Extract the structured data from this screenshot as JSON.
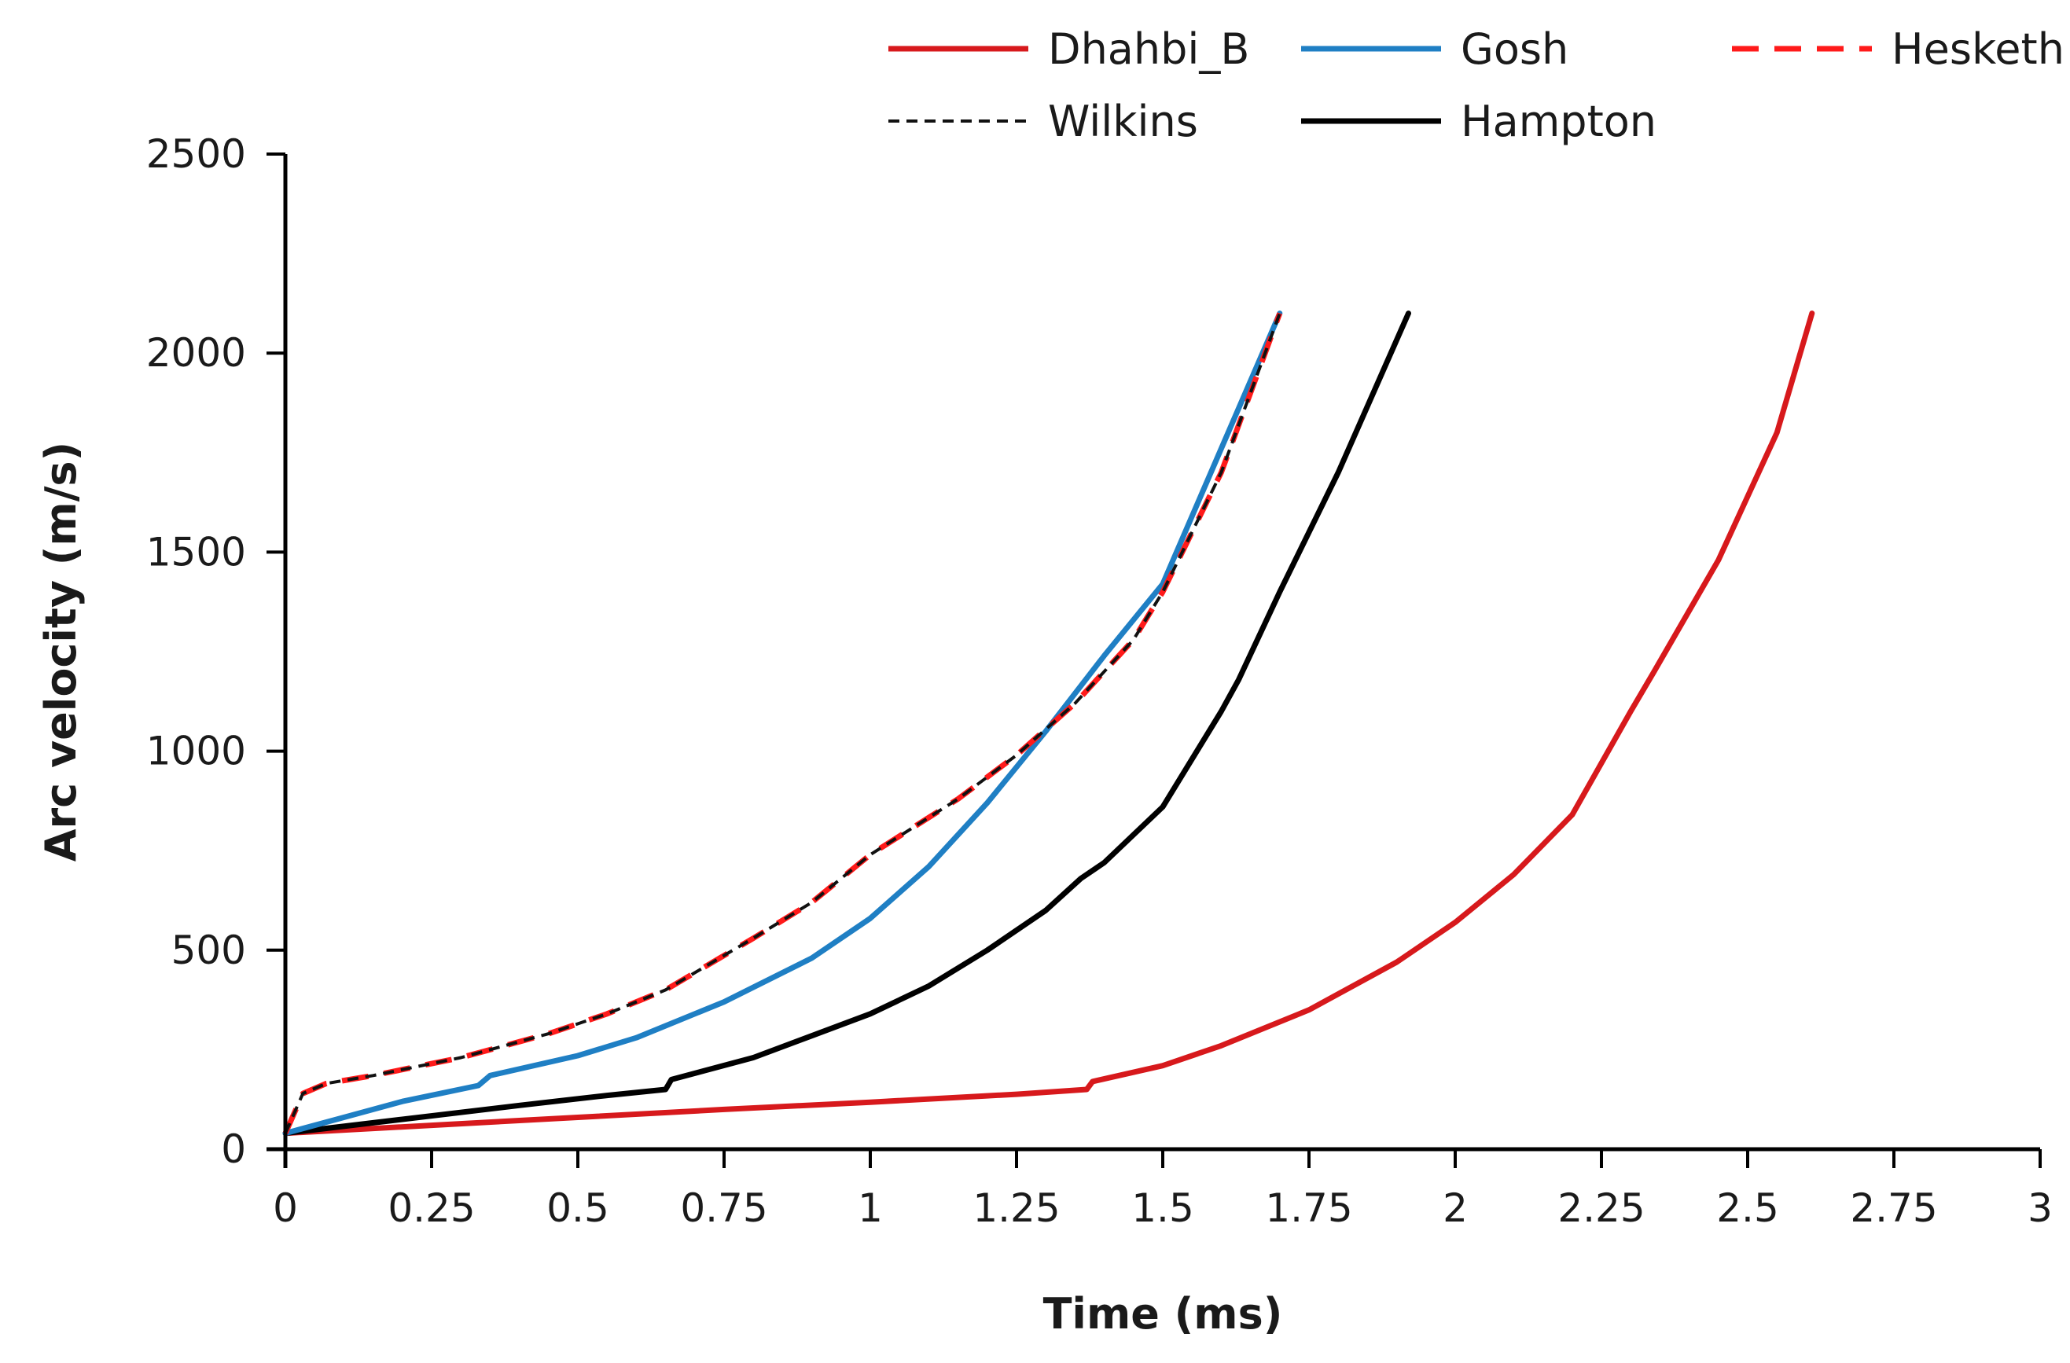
{
  "chart_data": {
    "type": "line",
    "title": "",
    "xlabel": "Time (ms)",
    "ylabel": "Arc velocity (m/s)",
    "xlim": [
      0,
      3
    ],
    "ylim": [
      0,
      2500
    ],
    "grid": false,
    "legend_position": "top-right",
    "x_ticks": [
      {
        "value": 0,
        "label": "0"
      },
      {
        "value": 0.25,
        "label": "0.25"
      },
      {
        "value": 0.5,
        "label": "0.5"
      },
      {
        "value": 0.75,
        "label": "0.75"
      },
      {
        "value": 1,
        "label": "1"
      },
      {
        "value": 1.25,
        "label": "1.25"
      },
      {
        "value": 1.5,
        "label": "1.5"
      },
      {
        "value": 1.75,
        "label": "1.75"
      },
      {
        "value": 2,
        "label": "2"
      },
      {
        "value": 2.25,
        "label": "2.25"
      },
      {
        "value": 2.5,
        "label": "2.5"
      },
      {
        "value": 2.75,
        "label": "2.75"
      },
      {
        "value": 3,
        "label": "3"
      }
    ],
    "y_ticks": [
      {
        "value": 0,
        "label": "0"
      },
      {
        "value": 500,
        "label": "500"
      },
      {
        "value": 1000,
        "label": "1000"
      },
      {
        "value": 1500,
        "label": "1500"
      },
      {
        "value": 2000,
        "label": "2000"
      },
      {
        "value": 2500,
        "label": "2500"
      }
    ],
    "series": [
      {
        "name": "Dhahbi_B",
        "color": "#d7191c",
        "dash": "solid",
        "points": [
          [
            0,
            40
          ],
          [
            0.25,
            60
          ],
          [
            0.5,
            80
          ],
          [
            0.75,
            100
          ],
          [
            1,
            118
          ],
          [
            1.25,
            138
          ],
          [
            1.37,
            150
          ],
          [
            1.38,
            170
          ],
          [
            1.5,
            210
          ],
          [
            1.6,
            260
          ],
          [
            1.75,
            350
          ],
          [
            1.9,
            470
          ],
          [
            2.0,
            570
          ],
          [
            2.1,
            690
          ],
          [
            2.2,
            840
          ],
          [
            2.3,
            1100
          ],
          [
            2.34,
            1200
          ],
          [
            2.45,
            1480
          ],
          [
            2.55,
            1800
          ],
          [
            2.61,
            2100
          ]
        ]
      },
      {
        "name": "Gosh",
        "color": "#1f7fc4",
        "dash": "solid",
        "points": [
          [
            0,
            40
          ],
          [
            0.1,
            80
          ],
          [
            0.2,
            120
          ],
          [
            0.33,
            160
          ],
          [
            0.35,
            185
          ],
          [
            0.5,
            235
          ],
          [
            0.6,
            280
          ],
          [
            0.75,
            370
          ],
          [
            0.9,
            480
          ],
          [
            1.0,
            580
          ],
          [
            1.1,
            710
          ],
          [
            1.2,
            870
          ],
          [
            1.3,
            1050
          ],
          [
            1.4,
            1240
          ],
          [
            1.5,
            1420
          ],
          [
            1.6,
            1760
          ],
          [
            1.7,
            2100
          ]
        ]
      },
      {
        "name": "Hesketh",
        "color": "#ff1a1a",
        "dash": "long-dash",
        "points": [
          [
            0,
            40
          ],
          [
            0.03,
            140
          ],
          [
            0.07,
            165
          ],
          [
            0.15,
            185
          ],
          [
            0.3,
            230
          ],
          [
            0.45,
            290
          ],
          [
            0.55,
            340
          ],
          [
            0.65,
            400
          ],
          [
            0.8,
            530
          ],
          [
            0.9,
            620
          ],
          [
            1.0,
            740
          ],
          [
            1.15,
            880
          ],
          [
            1.25,
            990
          ],
          [
            1.35,
            1120
          ],
          [
            1.45,
            1280
          ],
          [
            1.5,
            1400
          ],
          [
            1.6,
            1700
          ],
          [
            1.7,
            2100
          ]
        ]
      },
      {
        "name": "Wilkins",
        "color": "#111111",
        "dash": "short-dash",
        "points": [
          [
            0,
            40
          ],
          [
            0.03,
            140
          ],
          [
            0.07,
            165
          ],
          [
            0.15,
            185
          ],
          [
            0.3,
            230
          ],
          [
            0.45,
            290
          ],
          [
            0.55,
            340
          ],
          [
            0.65,
            400
          ],
          [
            0.8,
            530
          ],
          [
            0.9,
            620
          ],
          [
            1.0,
            740
          ],
          [
            1.15,
            880
          ],
          [
            1.25,
            990
          ],
          [
            1.35,
            1120
          ],
          [
            1.45,
            1280
          ],
          [
            1.5,
            1400
          ],
          [
            1.6,
            1700
          ],
          [
            1.7,
            2100
          ]
        ]
      },
      {
        "name": "Hampton",
        "color": "#000000",
        "dash": "solid",
        "points": [
          [
            0,
            40
          ],
          [
            0.2,
            75
          ],
          [
            0.4,
            110
          ],
          [
            0.55,
            135
          ],
          [
            0.65,
            150
          ],
          [
            0.66,
            175
          ],
          [
            0.8,
            230
          ],
          [
            0.9,
            285
          ],
          [
            1.0,
            340
          ],
          [
            1.1,
            410
          ],
          [
            1.2,
            500
          ],
          [
            1.3,
            600
          ],
          [
            1.36,
            680
          ],
          [
            1.4,
            720
          ],
          [
            1.5,
            860
          ],
          [
            1.6,
            1100
          ],
          [
            1.63,
            1180
          ],
          [
            1.7,
            1400
          ],
          [
            1.8,
            1700
          ],
          [
            1.92,
            2100
          ]
        ]
      }
    ]
  }
}
